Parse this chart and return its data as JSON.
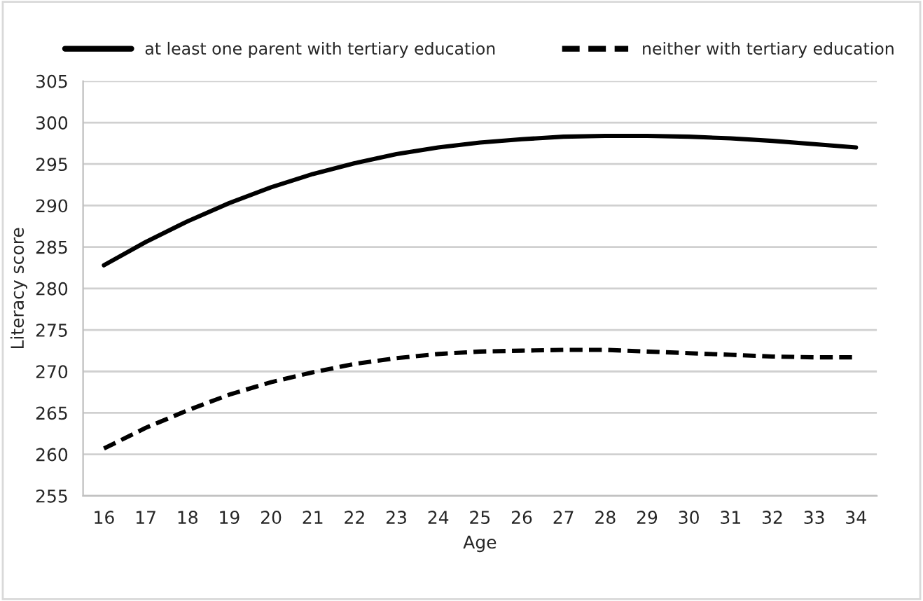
{
  "chart_data": {
    "type": "line",
    "xlabel": "Age",
    "ylabel": "Literacy score",
    "categories": [
      "16",
      "17",
      "18",
      "19",
      "20",
      "21",
      "22",
      "23",
      "24",
      "25",
      "26",
      "27",
      "28",
      "29",
      "30",
      "31",
      "32",
      "33",
      "34"
    ],
    "series": [
      {
        "name": "at least one parent with tertiary education",
        "color": "#000000",
        "line_style": "solid",
        "values": [
          282.8,
          285.6,
          288.1,
          290.3,
          292.2,
          293.8,
          295.1,
          296.2,
          297.0,
          297.6,
          298.0,
          298.3,
          298.4,
          298.4,
          298.3,
          298.1,
          297.8,
          297.4,
          297.0
        ]
      },
      {
        "name": "neither with tertiary education",
        "color": "#000000",
        "line_style": "dashed",
        "values": [
          260.7,
          263.2,
          265.3,
          267.2,
          268.7,
          269.9,
          270.9,
          271.6,
          272.1,
          272.4,
          272.5,
          272.6,
          272.6,
          272.4,
          272.2,
          272.0,
          271.8,
          271.7,
          271.7
        ]
      }
    ],
    "ylim": [
      255,
      305
    ],
    "yticks": [
      255,
      260,
      265,
      270,
      275,
      280,
      285,
      290,
      295,
      300,
      305
    ],
    "grid": "y",
    "legend": "top",
    "marker": "none"
  }
}
